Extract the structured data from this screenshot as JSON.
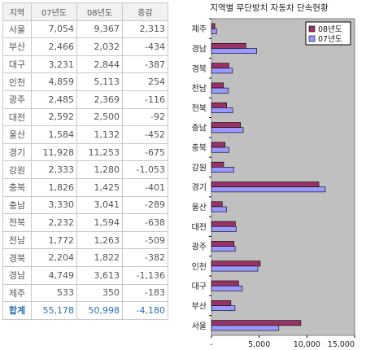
{
  "table": {
    "headers": [
      "지역",
      "07년도",
      "08년도",
      "증감"
    ],
    "rows": [
      [
        "서울",
        "7,054",
        "9,367",
        "2,313"
      ],
      [
        "부산",
        "2,466",
        "2,032",
        "-434"
      ],
      [
        "대구",
        "3,231",
        "2,844",
        "-387"
      ],
      [
        "인천",
        "4,859",
        "5,113",
        "254"
      ],
      [
        "광주",
        "2,485",
        "2,369",
        "-116"
      ],
      [
        "대전",
        "2,592",
        "2,500",
        "-92"
      ],
      [
        "울산",
        "1,584",
        "1,132",
        "-452"
      ],
      [
        "경기",
        "11,928",
        "11,253",
        "-675"
      ],
      [
        "강원",
        "2,333",
        "1,280",
        "-1,053"
      ],
      [
        "충북",
        "1,826",
        "1,425",
        "-401"
      ],
      [
        "충남",
        "3,330",
        "3,041",
        "-289"
      ],
      [
        "전북",
        "2,232",
        "1,594",
        "-638"
      ],
      [
        "전남",
        "1,772",
        "1,263",
        "-509"
      ],
      [
        "경북",
        "2,204",
        "1,822",
        "-382"
      ],
      [
        "경남",
        "4,749",
        "3,613",
        "-1,136"
      ],
      [
        "제주",
        "533",
        "350",
        "-183"
      ]
    ],
    "total": [
      "합계",
      "55,178",
      "50,998",
      "-4,180"
    ]
  },
  "chart_data": {
    "type": "bar",
    "orientation": "horizontal",
    "title": "지역별 무단방치 자동차 단속현황",
    "categories": [
      "제주",
      "경남",
      "경북",
      "전남",
      "전북",
      "충남",
      "충북",
      "강원",
      "경기",
      "울산",
      "대전",
      "광주",
      "인천",
      "대구",
      "부산",
      "서울"
    ],
    "series": [
      {
        "name": "08년도",
        "color": "#993366",
        "values": [
          350,
          3613,
          1822,
          1263,
          1594,
          3041,
          1425,
          1280,
          11253,
          1132,
          2500,
          2369,
          5113,
          2844,
          2032,
          9367
        ]
      },
      {
        "name": "07년도",
        "color": "#9999ff",
        "values": [
          533,
          4749,
          2204,
          1772,
          2232,
          3330,
          1826,
          2333,
          11928,
          1584,
          2592,
          2485,
          4859,
          3231,
          2466,
          7054
        ]
      }
    ],
    "xlim": [
      0,
      15000
    ],
    "xticks": [
      "-",
      "5,000",
      "10,000",
      "15,000"
    ],
    "xtick_values": [
      0,
      5000,
      10000,
      15000
    ],
    "plot_background": "#c0c0c0",
    "grid": false,
    "legend_position": "top-right"
  }
}
